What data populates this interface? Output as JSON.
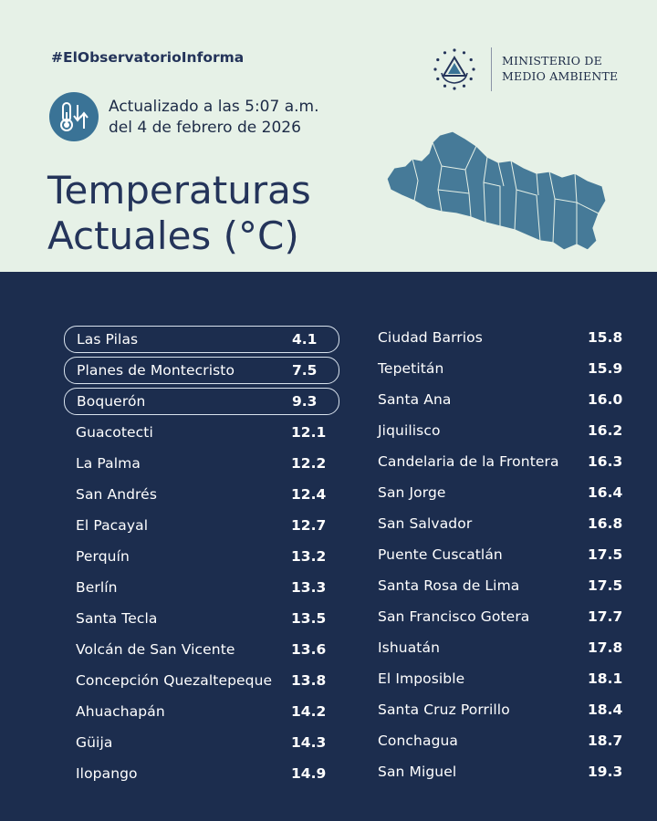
{
  "header": {
    "hashtag": "#ElObservatorioInforma",
    "updated_line1": "Actualizado a las 5:07 a.m.",
    "updated_line2": "del 4 de febrero de 2026",
    "title_line1": "Temperaturas",
    "title_line2": "Actuales (°C)",
    "ministry_line1": "MINISTERIO DE",
    "ministry_line2": "MEDIO AMBIENTE"
  },
  "colors": {
    "header_bg": "#e6f1e7",
    "body_bg": "#1c2d4e",
    "accent": "#3a7396",
    "map_fill": "#467a98"
  },
  "icons": {
    "badge": "thermometer-arrows-icon",
    "seal": "national-seal-icon",
    "map": "el-salvador-map"
  },
  "stations_left": [
    {
      "name": "Las Pilas",
      "value": "4.1",
      "highlight": true
    },
    {
      "name": "Planes de Montecristo",
      "value": "7.5",
      "highlight": true
    },
    {
      "name": "Boquerón",
      "value": "9.3",
      "highlight": true
    },
    {
      "name": "Guacotecti",
      "value": "12.1"
    },
    {
      "name": "La Palma",
      "value": "12.2"
    },
    {
      "name": "San Andrés",
      "value": "12.4"
    },
    {
      "name": "El Pacayal",
      "value": "12.7"
    },
    {
      "name": "Perquín",
      "value": "13.2"
    },
    {
      "name": "Berlín",
      "value": "13.3"
    },
    {
      "name": "Santa Tecla",
      "value": "13.5"
    },
    {
      "name": "Volcán de San Vicente",
      "value": "13.6"
    },
    {
      "name": "Concepción Quezaltepeque",
      "value": "13.8"
    },
    {
      "name": "Ahuachapán",
      "value": "14.2"
    },
    {
      "name": "Güija",
      "value": "14.3"
    },
    {
      "name": "Ilopango",
      "value": "14.9"
    }
  ],
  "stations_right": [
    {
      "name": "Ciudad Barrios",
      "value": "15.8"
    },
    {
      "name": "Tepetitán",
      "value": "15.9"
    },
    {
      "name": "Santa Ana",
      "value": "16.0"
    },
    {
      "name": "Jiquilisco",
      "value": "16.2"
    },
    {
      "name": "Candelaria de la Frontera",
      "value": "16.3"
    },
    {
      "name": "San Jorge",
      "value": "16.4"
    },
    {
      "name": "San Salvador",
      "value": "16.8"
    },
    {
      "name": "Puente Cuscatlán",
      "value": "17.5"
    },
    {
      "name": "Santa Rosa de Lima",
      "value": "17.5"
    },
    {
      "name": "San Francisco Gotera",
      "value": "17.7"
    },
    {
      "name": "Ishuatán",
      "value": "17.8"
    },
    {
      "name": "El Imposible",
      "value": "18.1"
    },
    {
      "name": "Santa Cruz Porrillo",
      "value": "18.4"
    },
    {
      "name": "Conchagua",
      "value": "18.7"
    },
    {
      "name": "San Miguel",
      "value": "19.3"
    }
  ]
}
